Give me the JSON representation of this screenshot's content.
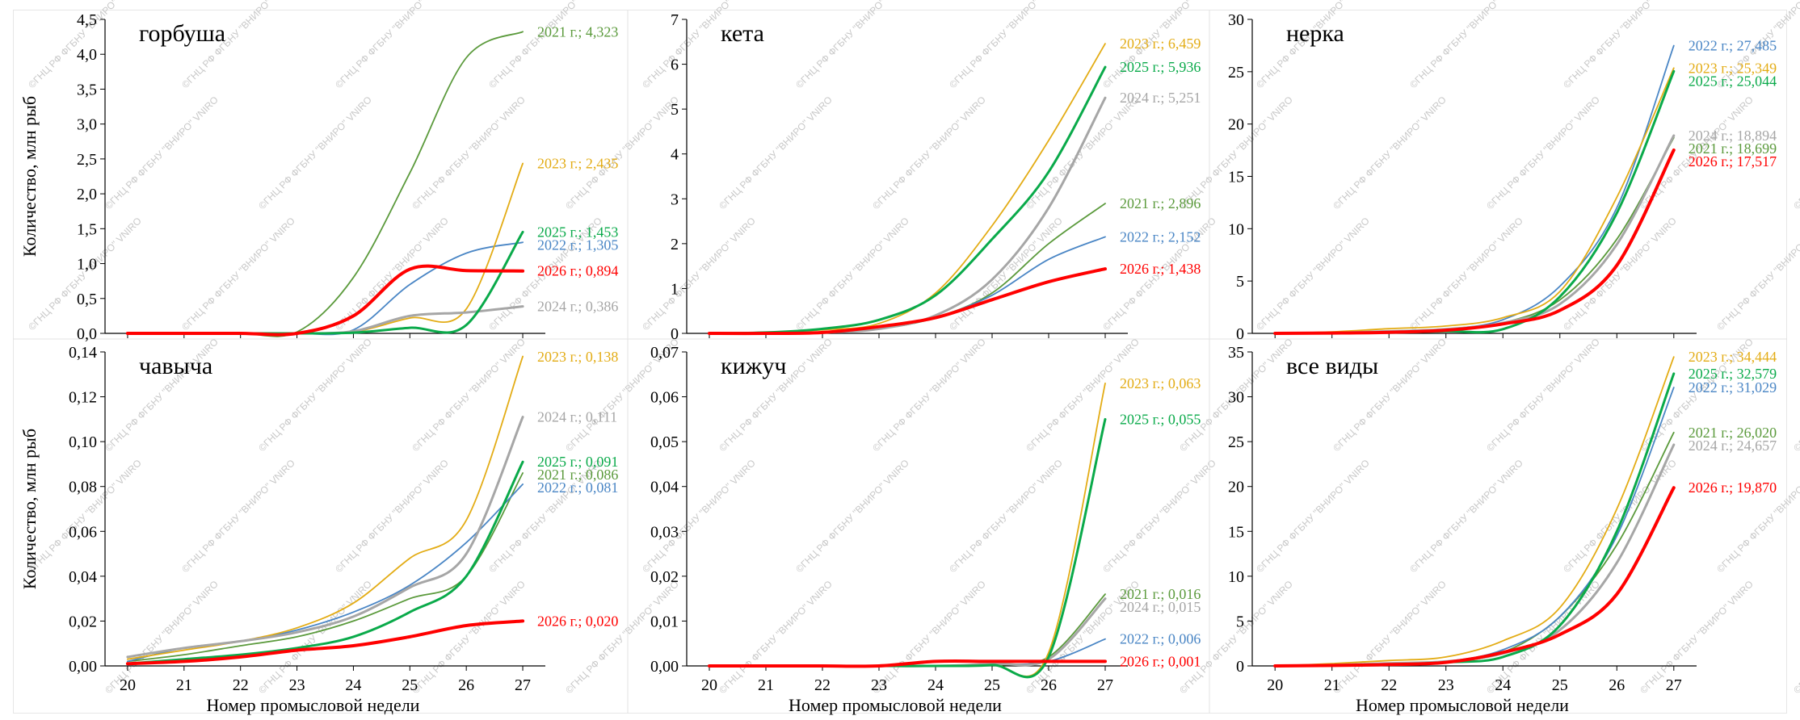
{
  "colors": {
    "y2021": "#5b9a3c",
    "y2022": "#4a86c5",
    "y2023": "#e3ac15",
    "y2024": "#a6a6a6",
    "y2025": "#0aaa4a",
    "y2026": "#ff0000"
  },
  "watermark_text": "©ГНЦ РФ ФГБНУ \"ВНИРО\" VNIRO",
  "chart_data": [
    {
      "type": "line",
      "title": "горбуша",
      "xlabel": "",
      "ylabel": "Количество, млн рыб",
      "x": [
        20,
        21,
        22,
        23,
        24,
        25,
        26,
        27
      ],
      "xlim": [
        19.6,
        27.4
      ],
      "ylim": [
        0,
        4.5
      ],
      "yticks": [
        "0,0",
        "0,5",
        "1,0",
        "1,5",
        "2,0",
        "2,5",
        "3,0",
        "3,5",
        "4,0",
        "4,5"
      ],
      "ytick_values": [
        0,
        0.5,
        1.0,
        1.5,
        2.0,
        2.5,
        3.0,
        3.5,
        4.0,
        4.5
      ],
      "show_x_ticks": false,
      "series": [
        {
          "year": "2021",
          "color_key": "y2021",
          "label": "2021 г.; 4,323",
          "values": [
            0,
            0,
            0,
            0.02,
            0.8,
            2.3,
            3.95,
            4.323
          ]
        },
        {
          "year": "2022",
          "color_key": "y2022",
          "label": "2022 г.; 1,305",
          "values": [
            0,
            0,
            0,
            0,
            0.05,
            0.7,
            1.15,
            1.305
          ]
        },
        {
          "year": "2023",
          "color_key": "y2023",
          "label": "2023 г.; 2,435",
          "values": [
            0,
            0,
            0,
            0,
            0.02,
            0.22,
            0.35,
            2.435
          ]
        },
        {
          "year": "2024",
          "color_key": "y2024",
          "label": "2024 г.; 0,386",
          "values": [
            0,
            0,
            0,
            0,
            0.03,
            0.25,
            0.3,
            0.386
          ]
        },
        {
          "year": "2025",
          "color_key": "y2025",
          "label": "2025 г.; 1,453",
          "values": [
            0,
            0,
            0,
            0,
            0.01,
            0.08,
            0.12,
            1.453
          ]
        },
        {
          "year": "2026",
          "color_key": "y2026",
          "label": "2026 г.; 0,894",
          "values": [
            0,
            0,
            0,
            0,
            0.25,
            0.92,
            0.9,
            0.894
          ]
        }
      ],
      "label_y": [
        4.323,
        2.435,
        1.453,
        1.305,
        0.894,
        0.386
      ]
    },
    {
      "type": "line",
      "title": "кета",
      "xlabel": "",
      "ylabel": "",
      "x": [
        20,
        21,
        22,
        23,
        24,
        25,
        26,
        27
      ],
      "xlim": [
        19.6,
        27.4
      ],
      "ylim": [
        0,
        7
      ],
      "yticks": [
        "0",
        "1",
        "2",
        "3",
        "4",
        "5",
        "6",
        "7"
      ],
      "ytick_values": [
        0,
        1,
        2,
        3,
        4,
        5,
        6,
        7
      ],
      "show_x_ticks": false,
      "series": [
        {
          "year": "2021",
          "color_key": "y2021",
          "label": "2021 г.; 2,896",
          "values": [
            0,
            0,
            0.02,
            0.1,
            0.35,
            0.9,
            2.0,
            2.896
          ]
        },
        {
          "year": "2022",
          "color_key": "y2022",
          "label": "2022 г.; 2,152",
          "values": [
            0,
            0,
            0.02,
            0.1,
            0.35,
            0.85,
            1.65,
            2.152
          ]
        },
        {
          "year": "2023",
          "color_key": "y2023",
          "label": "2023 г.; 6,459",
          "values": [
            0,
            0.02,
            0.08,
            0.22,
            0.9,
            2.4,
            4.3,
            6.459
          ]
        },
        {
          "year": "2024",
          "color_key": "y2024",
          "label": "2024 г.; 5,251",
          "values": [
            0,
            0,
            0.02,
            0.1,
            0.4,
            1.2,
            2.8,
            5.251
          ]
        },
        {
          "year": "2025",
          "color_key": "y2025",
          "label": "2025 г.; 5,936",
          "values": [
            0,
            0.02,
            0.1,
            0.3,
            0.85,
            2.1,
            3.6,
            5.936
          ]
        },
        {
          "year": "2026",
          "color_key": "y2026",
          "label": "2026 г.; 1,438",
          "values": [
            0,
            0,
            0.02,
            0.15,
            0.35,
            0.75,
            1.15,
            1.438
          ]
        }
      ],
      "label_y": [
        6.459,
        5.936,
        5.251,
        2.896,
        2.152,
        1.438
      ]
    },
    {
      "type": "line",
      "title": "нерка",
      "xlabel": "",
      "ylabel": "",
      "x": [
        20,
        21,
        22,
        23,
        24,
        25,
        26,
        27
      ],
      "xlim": [
        19.6,
        27.4
      ],
      "ylim": [
        0,
        30
      ],
      "yticks": [
        "0",
        "5",
        "10",
        "15",
        "20",
        "25",
        "30"
      ],
      "ytick_values": [
        0,
        5,
        10,
        15,
        20,
        25,
        30
      ],
      "show_x_ticks": false,
      "series": [
        {
          "year": "2021",
          "color_key": "y2021",
          "label": "2021 г.; 18,699",
          "values": [
            0,
            0.05,
            0.15,
            0.35,
            1.0,
            3.2,
            9.0,
            18.699
          ]
        },
        {
          "year": "2022",
          "color_key": "y2022",
          "label": "2022 г.; 27,485",
          "values": [
            0,
            0.05,
            0.15,
            0.4,
            1.3,
            4.5,
            12.0,
            27.485
          ]
        },
        {
          "year": "2023",
          "color_key": "y2023",
          "label": "2023 г.; 25,349",
          "values": [
            0,
            0.15,
            0.45,
            0.7,
            1.5,
            4.0,
            13.0,
            25.349
          ]
        },
        {
          "year": "2024",
          "color_key": "y2024",
          "label": "2024 г.; 18,894",
          "values": [
            0,
            0.05,
            0.2,
            0.4,
            1.0,
            2.8,
            8.5,
            18.894
          ]
        },
        {
          "year": "2025",
          "color_key": "y2025",
          "label": "2025 г.; 25,044",
          "values": [
            0,
            0.02,
            0.1,
            0.2,
            0.4,
            3.5,
            11.5,
            25.044
          ]
        },
        {
          "year": "2026",
          "color_key": "y2026",
          "label": "2026 г.; 17,517",
          "values": [
            0,
            0.03,
            0.1,
            0.3,
            0.9,
            2.2,
            6.5,
            17.517
          ]
        }
      ],
      "label_y": [
        27.485,
        25.349,
        25.044,
        18.894,
        18.699,
        17.517
      ]
    },
    {
      "type": "line",
      "title": "чавыча",
      "xlabel": "Номер промысловой недели",
      "ylabel": "Количество, млн рыб",
      "x": [
        20,
        21,
        22,
        23,
        24,
        25,
        26,
        27
      ],
      "xlim": [
        19.6,
        27.4
      ],
      "ylim": [
        0,
        0.14
      ],
      "yticks": [
        "0,00",
        "0,02",
        "0,04",
        "0,06",
        "0,08",
        "0,10",
        "0,12",
        "0,14"
      ],
      "ytick_values": [
        0,
        0.02,
        0.04,
        0.06,
        0.08,
        0.1,
        0.12,
        0.14
      ],
      "xticks": [
        "20",
        "21",
        "22",
        "23",
        "24",
        "25",
        "26",
        "27"
      ],
      "show_x_ticks": true,
      "series": [
        {
          "year": "2021",
          "color_key": "y2021",
          "label": "2021 г.; 0,086",
          "values": [
            0.002,
            0.005,
            0.009,
            0.013,
            0.02,
            0.03,
            0.04,
            0.086
          ]
        },
        {
          "year": "2022",
          "color_key": "y2022",
          "label": "2022 г.; 0,081",
          "values": [
            0.002,
            0.008,
            0.011,
            0.016,
            0.024,
            0.036,
            0.055,
            0.081
          ]
        },
        {
          "year": "2023",
          "color_key": "y2023",
          "label": "2023 г.; 0,138",
          "values": [
            0.003,
            0.007,
            0.011,
            0.017,
            0.028,
            0.048,
            0.065,
            0.138
          ]
        },
        {
          "year": "2024",
          "color_key": "y2024",
          "label": "2024 г.; 0,111",
          "values": [
            0.004,
            0.008,
            0.011,
            0.015,
            0.022,
            0.035,
            0.05,
            0.111
          ]
        },
        {
          "year": "2025",
          "color_key": "y2025",
          "label": "2025 г.; 0,091",
          "values": [
            0.001,
            0.003,
            0.005,
            0.008,
            0.013,
            0.024,
            0.04,
            0.091
          ]
        },
        {
          "year": "2026",
          "color_key": "y2026",
          "label": "2026 г.; 0,020",
          "values": [
            0.001,
            0.002,
            0.004,
            0.007,
            0.009,
            0.013,
            0.018,
            0.02
          ]
        }
      ],
      "label_y": [
        0.138,
        0.111,
        0.091,
        0.086,
        0.081,
        0.02
      ]
    },
    {
      "type": "line",
      "title": "кижуч",
      "xlabel": "Номер промысловой недели",
      "ylabel": "",
      "x": [
        20,
        21,
        22,
        23,
        24,
        25,
        26,
        27
      ],
      "xlim": [
        19.6,
        27.4
      ],
      "ylim": [
        0,
        0.07
      ],
      "yticks": [
        "0,00",
        "0,01",
        "0,02",
        "0,03",
        "0,04",
        "0,05",
        "0,06",
        "0,07"
      ],
      "ytick_values": [
        0,
        0.01,
        0.02,
        0.03,
        0.04,
        0.05,
        0.06,
        0.07
      ],
      "xticks": [
        "20",
        "21",
        "22",
        "23",
        "24",
        "25",
        "26",
        "27"
      ],
      "show_x_ticks": true,
      "series": [
        {
          "year": "2021",
          "color_key": "y2021",
          "label": "2021 г.; 0,016",
          "values": [
            0,
            0,
            0,
            0,
            0,
            0.0002,
            0.002,
            0.016
          ]
        },
        {
          "year": "2022",
          "color_key": "y2022",
          "label": "2022 г.; 0,006",
          "values": [
            0,
            0,
            0,
            0,
            0,
            0.0003,
            0.001,
            0.006
          ]
        },
        {
          "year": "2023",
          "color_key": "y2023",
          "label": "2023 г.; 0,063",
          "values": [
            0,
            0,
            0,
            0,
            0,
            0.0003,
            0.003,
            0.063
          ]
        },
        {
          "year": "2024",
          "color_key": "y2024",
          "label": "2024 г.; 0,015",
          "values": [
            0,
            0,
            0,
            0,
            0,
            0.0005,
            0.0015,
            0.015
          ]
        },
        {
          "year": "2025",
          "color_key": "y2025",
          "label": "2025 г.; 0,055",
          "values": [
            0,
            0,
            0,
            0,
            0,
            0.0002,
            0.002,
            0.055
          ]
        },
        {
          "year": "2026",
          "color_key": "y2026",
          "label": "2026 г.; 0,001",
          "values": [
            0,
            0,
            0,
            0,
            0.001,
            0.001,
            0.001,
            0.001
          ]
        }
      ],
      "label_y": [
        0.063,
        0.055,
        0.016,
        0.015,
        0.006,
        0.001
      ]
    },
    {
      "type": "line",
      "title": "все виды",
      "xlabel": "Номер промысловой недели",
      "ylabel": "",
      "x": [
        20,
        21,
        22,
        23,
        24,
        25,
        26,
        27
      ],
      "xlim": [
        19.6,
        27.4
      ],
      "ylim": [
        0,
        35
      ],
      "yticks": [
        "0",
        "5",
        "10",
        "15",
        "20",
        "25",
        "30",
        "35"
      ],
      "ytick_values": [
        0,
        5,
        10,
        15,
        20,
        25,
        30,
        35
      ],
      "xticks": [
        "20",
        "21",
        "22",
        "23",
        "24",
        "25",
        "26",
        "27"
      ],
      "show_x_ticks": true,
      "series": [
        {
          "year": "2021",
          "color_key": "y2021",
          "label": "2021 г.; 26,020",
          "values": [
            0,
            0.1,
            0.25,
            0.45,
            1.5,
            5.5,
            13.5,
            26.02
          ]
        },
        {
          "year": "2022",
          "color_key": "y2022",
          "label": "2022 г.; 31,029",
          "values": [
            0,
            0.1,
            0.25,
            0.5,
            1.8,
            5.5,
            14.5,
            31.029
          ]
        },
        {
          "year": "2023",
          "color_key": "y2023",
          "label": "2023 г.; 34,444",
          "values": [
            0,
            0.25,
            0.6,
            1.0,
            2.8,
            6.5,
            17.5,
            34.444
          ]
        },
        {
          "year": "2024",
          "color_key": "y2024",
          "label": "2024 г.; 24,657",
          "values": [
            0,
            0.1,
            0.3,
            0.5,
            1.4,
            4.0,
            11.5,
            24.657
          ]
        },
        {
          "year": "2025",
          "color_key": "y2025",
          "label": "2025 г.; 32,579",
          "values": [
            0,
            0.05,
            0.15,
            0.4,
            1.0,
            4.5,
            15.0,
            32.579
          ]
        },
        {
          "year": "2026",
          "color_key": "y2026",
          "label": "2026 г.; 19,870",
          "values": [
            0,
            0.05,
            0.15,
            0.4,
            1.5,
            3.5,
            8.0,
            19.87
          ]
        }
      ],
      "label_y": [
        34.444,
        32.579,
        31.029,
        26.02,
        24.657,
        19.87
      ]
    }
  ]
}
